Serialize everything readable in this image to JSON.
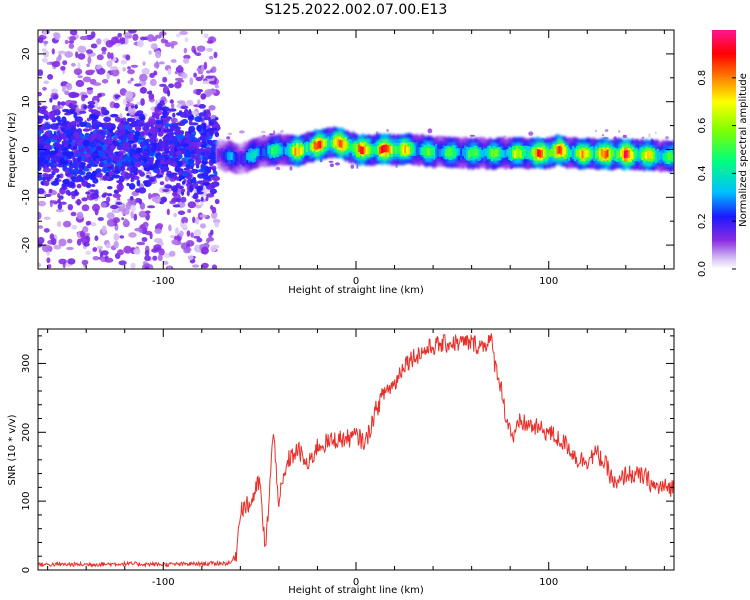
{
  "title": "S125.2022.002.07.00.E13",
  "colors": {
    "snr_line": "#e8302a",
    "colorbar_stops": [
      "#d9d9f5",
      "#8a2be2",
      "#1a1aff",
      "#00bfff",
      "#00ff7f",
      "#7fff00",
      "#ffff00",
      "#ff8000",
      "#ff0000",
      "#ff1493"
    ]
  },
  "chart_data": [
    {
      "type": "heatmap",
      "xlabel": "Height of straight line (km)",
      "ylabel": "Frequency (Hz)",
      "xlim": [
        -165,
        165
      ],
      "ylim": [
        -25,
        25
      ],
      "xticks": [
        -100,
        0,
        100
      ],
      "xtick_labels": [
        "-100",
        "0",
        "100"
      ],
      "yticks": [
        -20,
        -10,
        0,
        10,
        20
      ],
      "ytick_labels": [
        "-20",
        "-10",
        "0",
        "10",
        "20"
      ],
      "colorbar": {
        "label": "Normalized spectral amplitude",
        "range": [
          0,
          1
        ],
        "ticks": [
          0,
          0.2,
          0.4,
          0.6,
          0.8
        ],
        "tick_labels": [
          "0.0",
          "0.2",
          "0.4",
          "0.6",
          "0.8"
        ]
      },
      "regions": [
        {
          "x_range": [
            -165,
            -72
          ],
          "description_value": "scattered noise, amplitude 0.05-0.3, spread -25..25 Hz, core -7..7 Hz"
        },
        {
          "x_range": [
            -72,
            165
          ],
          "description_value": "narrow tone near 0 Hz, amplitude up to 1.0"
        }
      ],
      "ridge": {
        "x": [
          -72,
          -60,
          -50,
          -40,
          -30,
          -20,
          -10,
          0,
          10,
          20,
          30,
          40,
          60,
          80,
          100,
          105,
          110,
          140,
          165
        ],
        "freq": [
          -1,
          -2,
          -0.5,
          0,
          -0.3,
          1,
          1.5,
          0,
          0,
          0,
          0,
          -0.5,
          -0.8,
          -0.8,
          -0.8,
          0,
          -0.8,
          -1,
          -1.5
        ],
        "amplitude": [
          0.3,
          0.35,
          0.45,
          0.5,
          0.8,
          0.9,
          0.9,
          0.85,
          0.9,
          0.95,
          0.6,
          0.55,
          0.55,
          0.6,
          0.95,
          0.9,
          0.7,
          0.95,
          0.5
        ]
      }
    },
    {
      "type": "line",
      "xlabel": "Height of straight line (km)",
      "ylabel": "SNR (10 * v/v)",
      "xlim": [
        -165,
        165
      ],
      "ylim": [
        0,
        350
      ],
      "xticks": [
        -100,
        0,
        100
      ],
      "xtick_labels": [
        "-100",
        "0",
        "100"
      ],
      "yticks": [
        0,
        100,
        200,
        300
      ],
      "ytick_labels": [
        "0",
        "100",
        "200",
        "300"
      ],
      "series": [
        {
          "x": [
            -165,
            -140,
            -120,
            -100,
            -80,
            -65,
            -62,
            -60,
            -55,
            -50,
            -47,
            -45,
            -43,
            -40,
            -35,
            -30,
            -25,
            -20,
            -15,
            -10,
            -5,
            0,
            5,
            10,
            15,
            20,
            25,
            30,
            40,
            50,
            60,
            65,
            70,
            72,
            75,
            78,
            82,
            85,
            90,
            100,
            110,
            115,
            120,
            125,
            130,
            135,
            140,
            150,
            155,
            160,
            165
          ],
          "y": [
            8,
            8,
            9,
            8,
            9,
            10,
            25,
            90,
            95,
            130,
            25,
            110,
            200,
            100,
            160,
            175,
            150,
            180,
            185,
            190,
            190,
            195,
            185,
            230,
            260,
            270,
            300,
            310,
            325,
            330,
            330,
            325,
            335,
            300,
            270,
            220,
            190,
            215,
            210,
            200,
            180,
            160,
            160,
            170,
            150,
            120,
            140,
            135,
            120,
            120,
            120
          ],
          "noise": 14
        }
      ]
    }
  ]
}
